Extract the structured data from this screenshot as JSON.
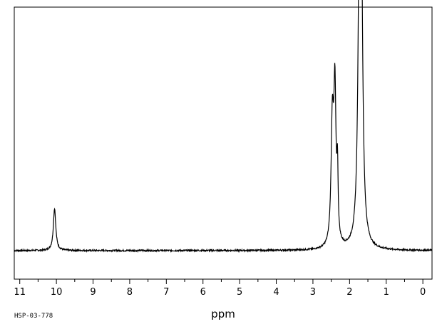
{
  "chart_data": {
    "type": "line",
    "title": "",
    "xlabel": "ppm",
    "ylabel": "",
    "xlim": [
      11.15,
      -0.25
    ],
    "x_reversed": true,
    "ylim": [
      0,
      1
    ],
    "baseline": 0.105,
    "grid": false,
    "x_ticks": [
      11,
      10,
      9,
      8,
      7,
      6,
      5,
      4,
      3,
      2,
      1,
      0
    ],
    "x_tick_labels": [
      "11",
      "10",
      "9",
      "8",
      "7",
      "6",
      "5",
      "4",
      "3",
      "2",
      "1",
      "0"
    ],
    "x_minor_step": 0.5,
    "peaks": [
      {
        "ppm": 10.05,
        "height": 0.155,
        "width": 0.04
      },
      {
        "ppm": 2.47,
        "height": 0.45,
        "width": 0.04
      },
      {
        "ppm": 2.4,
        "height": 0.55,
        "width": 0.035
      },
      {
        "ppm": 2.33,
        "height": 0.24,
        "width": 0.02
      },
      {
        "ppm": 1.73,
        "height": 0.975,
        "width": 0.045
      },
      {
        "ppm": 1.68,
        "height": 0.92,
        "width": 0.045
      }
    ],
    "footer_code": "HSP-03-778"
  }
}
